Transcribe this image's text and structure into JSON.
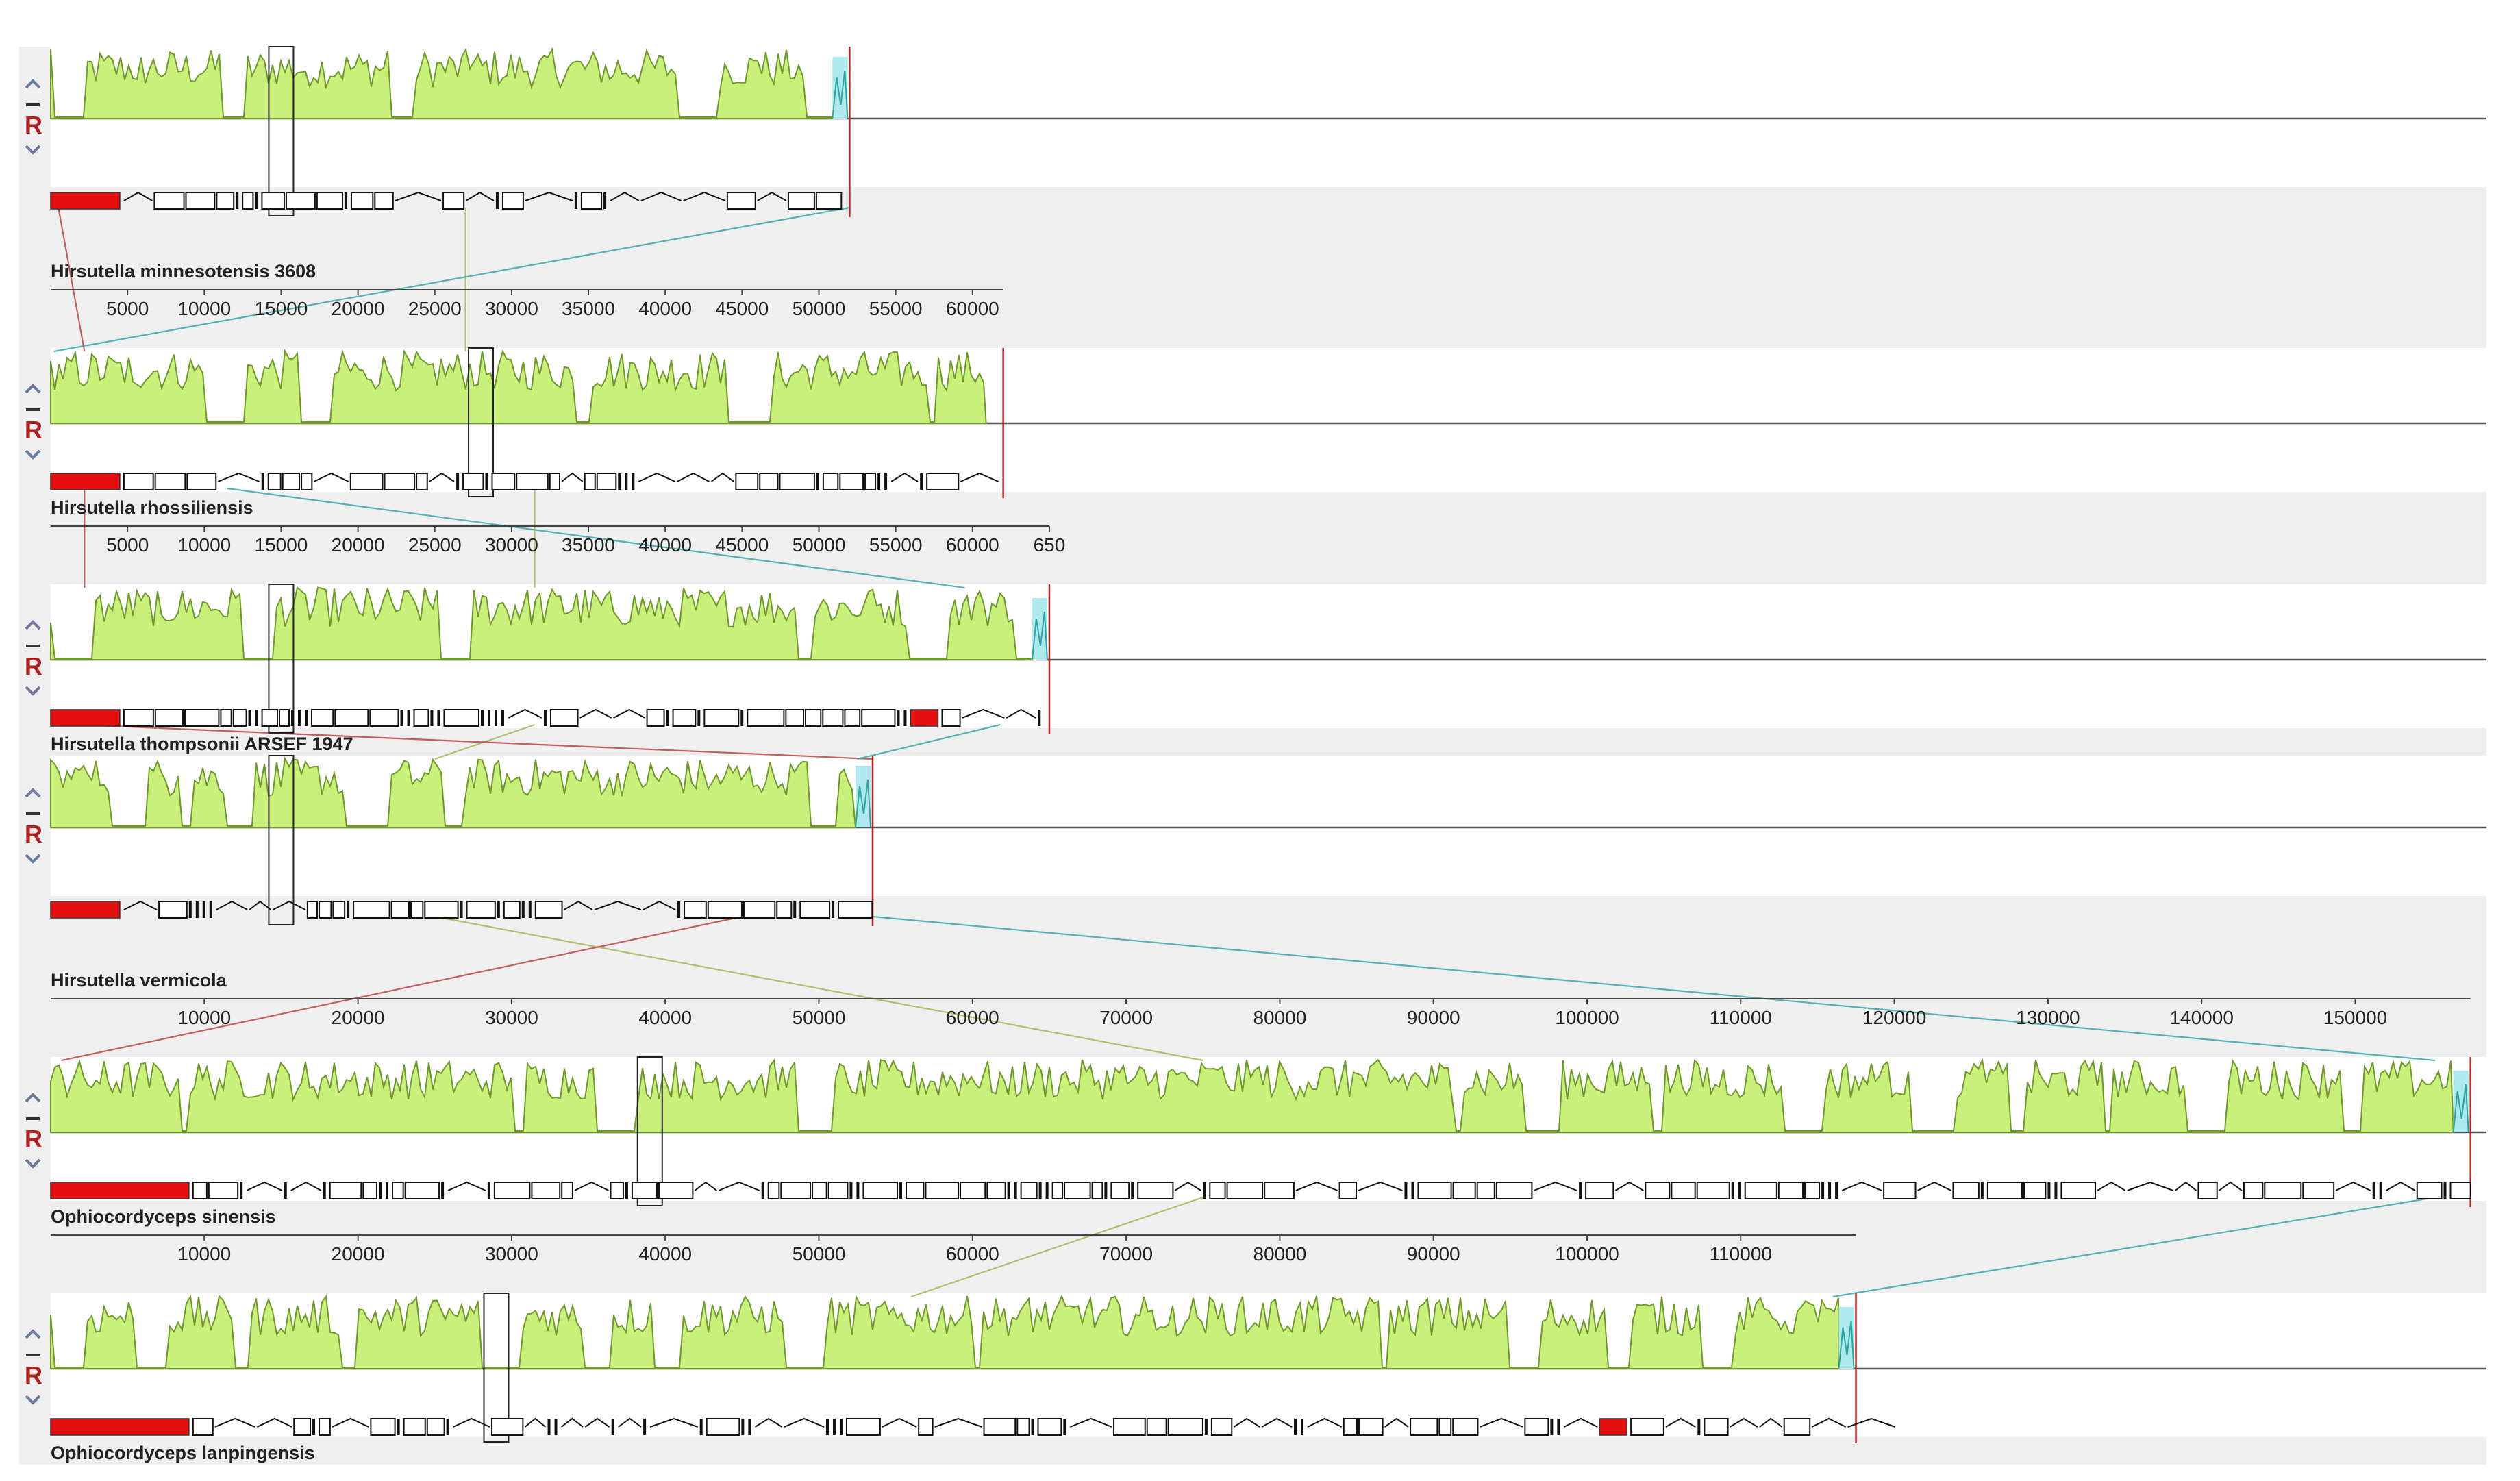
{
  "viewer": {
    "panel_controls": {
      "up_icon": "chevron-up-icon",
      "minus_icon": "minus-icon",
      "reverse_label": "R",
      "down_icon": "chevron-down-icon"
    },
    "colors": {
      "panel_bg": "#efefef",
      "block_green_fill": "#c9f07a",
      "block_green_line": "#6f9a2a",
      "block_cyan_fill": "#aee9ee",
      "block_cyan_line": "#2aa6a0",
      "connector_green": "#aab45a",
      "connector_cyan": "#3aa8a8",
      "connector_red": "#b84848",
      "feature_red": "#e61010",
      "rearrangement_line": "#c02020"
    }
  },
  "genomes": [
    {
      "name": "Hirsutella minnesotensis 3608",
      "length": 52000,
      "show_ruler": false,
      "ruler_ticks": [],
      "cyan_tail": true
    },
    {
      "name": "Hirsutella rhossiliensis",
      "length": 62000,
      "show_ruler": true,
      "ruler_ticks": [
        "5000",
        "10000",
        "15000",
        "20000",
        "25000",
        "30000",
        "35000",
        "40000",
        "45000",
        "50000",
        "55000",
        "60000"
      ],
      "cyan_tail": false
    },
    {
      "name": "Hirsutella thompsonii ARSEF 1947",
      "length": 65000,
      "show_ruler": true,
      "ruler_ticks": [
        "5000",
        "10000",
        "15000",
        "20000",
        "25000",
        "30000",
        "35000",
        "40000",
        "45000",
        "50000",
        "55000",
        "60000",
        "650"
      ],
      "cyan_tail": true
    },
    {
      "name": "Hirsutella vermicola",
      "length": 53500,
      "show_ruler": false,
      "ruler_ticks": [],
      "cyan_tail": true
    },
    {
      "name": "Ophiocordyceps sinensis",
      "length": 157500,
      "show_ruler": true,
      "ruler_ticks": [
        "10000",
        "20000",
        "30000",
        "40000",
        "50000",
        "60000",
        "70000",
        "80000",
        "90000",
        "100000",
        "110000",
        "120000",
        "130000",
        "140000",
        "150000"
      ],
      "cyan_tail": true
    },
    {
      "name": "Ophiocordyceps  lanpingensis",
      "length": 117500,
      "show_ruler": true,
      "ruler_ticks": [
        "10000",
        "20000",
        "30000",
        "40000",
        "50000",
        "60000",
        "70000",
        "80000",
        "90000",
        "100000",
        "110000"
      ],
      "cyan_tail": true
    }
  ]
}
